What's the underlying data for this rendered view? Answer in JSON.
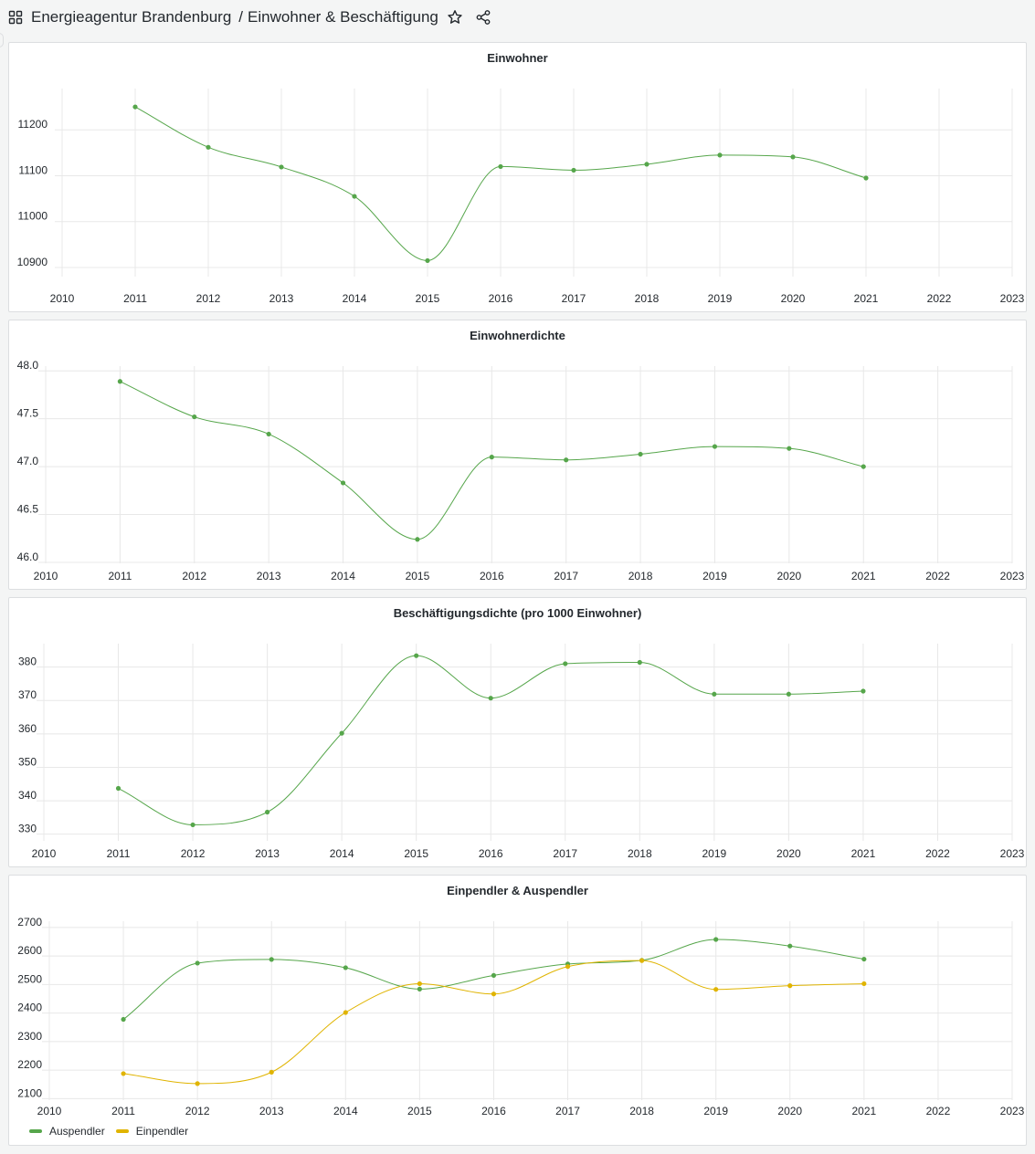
{
  "header": {
    "org": "Energieagentur Brandenburg",
    "separator": "/",
    "dashboard": "Einwohner & Beschäftigung",
    "icons": [
      "apps-icon",
      "star-icon",
      "share-icon"
    ]
  },
  "colors": {
    "green": "#56a64b",
    "yellow": "#e0b400",
    "grid": "#e8e8e8",
    "text": "#24292e"
  },
  "chart_data": [
    {
      "type": "line",
      "title": "Einwohner",
      "x": [
        "2011",
        "2012",
        "2013",
        "2014",
        "2015",
        "2016",
        "2017",
        "2018",
        "2019",
        "2020",
        "2021"
      ],
      "xticks": [
        "2010",
        "2011",
        "2012",
        "2013",
        "2014",
        "2015",
        "2016",
        "2017",
        "2018",
        "2019",
        "2020",
        "2021",
        "2022",
        "2023"
      ],
      "yticks": [
        10900,
        11000,
        11100,
        11200
      ],
      "ylim": [
        10880,
        11290
      ],
      "series": [
        {
          "color": "#56a64b",
          "values": [
            11250,
            11162,
            11119,
            11055,
            10915,
            11120,
            11112,
            11125,
            11145,
            11141,
            11095
          ]
        }
      ],
      "grid": true,
      "legend": "none"
    },
    {
      "type": "line",
      "title": "Einwohnerdichte",
      "x": [
        "2011",
        "2012",
        "2013",
        "2014",
        "2015",
        "2016",
        "2017",
        "2018",
        "2019",
        "2020",
        "2021"
      ],
      "xticks": [
        "2010",
        "2011",
        "2012",
        "2013",
        "2014",
        "2015",
        "2016",
        "2017",
        "2018",
        "2019",
        "2020",
        "2021",
        "2022",
        "2023"
      ],
      "yticks": [
        "46.0",
        "46.5",
        "47.0",
        "47.5",
        "48.0"
      ],
      "ylim": [
        45.99,
        48.05
      ],
      "series": [
        {
          "color": "#56a64b",
          "values": [
            47.89,
            47.52,
            47.34,
            46.83,
            46.24,
            47.1,
            47.07,
            47.13,
            47.21,
            47.19,
            47.0
          ]
        }
      ],
      "grid": true,
      "legend": "none"
    },
    {
      "type": "line",
      "title": "Beschäftigungsdichte (pro 1000 Einwohner)",
      "x": [
        "2011",
        "2012",
        "2013",
        "2014",
        "2015",
        "2016",
        "2017",
        "2018",
        "2019",
        "2020",
        "2021"
      ],
      "xticks": [
        "2010",
        "2011",
        "2012",
        "2013",
        "2014",
        "2015",
        "2016",
        "2017",
        "2018",
        "2019",
        "2020",
        "2021",
        "2022",
        "2023"
      ],
      "yticks": [
        330,
        340,
        350,
        360,
        370,
        380
      ],
      "ylim": [
        328,
        387
      ],
      "series": [
        {
          "color": "#56a64b",
          "values": [
            343.7,
            332.8,
            336.6,
            360.2,
            383.4,
            370.7,
            381.0,
            381.4,
            371.9,
            371.9,
            372.8
          ]
        }
      ],
      "grid": true,
      "legend": "none"
    },
    {
      "type": "line",
      "title": "Einpendler & Auspendler",
      "x": [
        "2011",
        "2012",
        "2013",
        "2014",
        "2015",
        "2016",
        "2017",
        "2018",
        "2019",
        "2020",
        "2021"
      ],
      "xticks": [
        "2010",
        "2011",
        "2012",
        "2013",
        "2014",
        "2015",
        "2016",
        "2017",
        "2018",
        "2019",
        "2020",
        "2021",
        "2022",
        "2023"
      ],
      "yticks": [
        2100,
        2200,
        2300,
        2400,
        2500,
        2600,
        2700
      ],
      "ylim": [
        2095,
        2722
      ],
      "series": [
        {
          "name": "Auspendler",
          "color": "#56a64b",
          "values": [
            2378,
            2575,
            2588,
            2559,
            2484,
            2532,
            2572,
            2585,
            2658,
            2635,
            2589
          ]
        },
        {
          "name": "Einpendler",
          "color": "#e0b400",
          "values": [
            2188,
            2153,
            2193,
            2402,
            2503,
            2467,
            2563,
            2584,
            2483,
            2496,
            2503
          ]
        }
      ],
      "grid": true,
      "legend": "bottom-left"
    }
  ]
}
